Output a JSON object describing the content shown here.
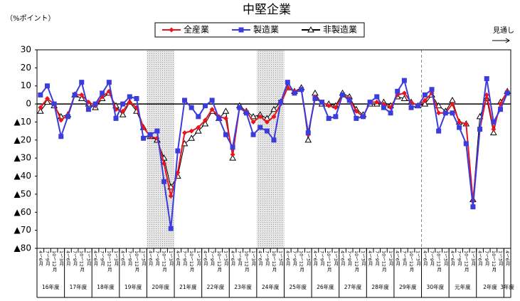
{
  "chart_data": {
    "type": "line",
    "title": "中堅企業",
    "y_unit": "（%ポイント）",
    "annotation": "見通し",
    "categories": [
      "4～6月",
      "7～9月",
      "10～12月",
      "1～3月",
      "4～6月",
      "7～9月",
      "10～12月",
      "1～3月",
      "4～6月",
      "7～9月",
      "10～12月",
      "1～3月",
      "4～6月",
      "7～9月",
      "10～12月",
      "1～3月",
      "4～6月",
      "7～9月",
      "10～12月",
      "1～3月",
      "4～6月",
      "7～9月",
      "10～12月",
      "1～3月",
      "4～6月",
      "7～9月",
      "10～12月",
      "1～3月",
      "4～6月",
      "7～9月",
      "10～12月",
      "1～3月",
      "4～6月",
      "7～9月",
      "10～12月",
      "1～3月",
      "4～6月",
      "7～9月",
      "10～12月",
      "1～3月",
      "4～6月",
      "7～9月",
      "10～12月",
      "1～3月",
      "4～6月",
      "7～9月",
      "10～12月",
      "1～3月",
      "4～6月",
      "7～9月",
      "10～12月",
      "1～3月",
      "4～6月",
      "7～9月",
      "10～12月",
      "1～3月",
      "4～6月",
      "7～9月",
      "10～12月",
      "1～3月",
      "4～6月",
      "7～9月",
      "10～12月",
      "1～3月",
      "4～6月",
      "7～9月",
      "10～12月",
      "1～3月",
      "4～6月"
    ],
    "groups": [
      "16年度",
      "17年度",
      "18年度",
      "19年度",
      "20年度",
      "21年度",
      "22年度",
      "23年度",
      "24年度",
      "25年度",
      "26年度",
      "27年度",
      "28年度",
      "29年度",
      "30年度",
      "元年度",
      "2年度",
      "3年度"
    ],
    "series": [
      {
        "name": "全産業",
        "color": "#e8141e",
        "marker": "diamond",
        "values": [
          -2,
          3,
          0,
          -9,
          -6,
          5,
          5,
          1,
          -1,
          4,
          7,
          -3,
          -4,
          1,
          -2,
          -13,
          -18,
          -19,
          -33,
          -51,
          -38,
          -16,
          -15,
          -13,
          -9,
          -3,
          -7,
          -8,
          -28,
          -2,
          -4,
          -10,
          -7,
          -10,
          -7,
          0,
          9,
          7,
          8,
          -17,
          4,
          1,
          -1,
          -2,
          5,
          3,
          -4,
          -7,
          1,
          1,
          0,
          -2,
          5,
          6,
          1,
          -1,
          2,
          6,
          -5,
          -5,
          0,
          -10,
          -11,
          -54,
          -14,
          5,
          -14,
          0,
          7
        ]
      },
      {
        "name": "製造業",
        "color": "#3c3cdc",
        "marker": "square",
        "values": [
          5,
          10,
          0,
          -18,
          -7,
          5,
          12,
          -3,
          0,
          6,
          12,
          -8,
          0,
          4,
          3,
          -19,
          -17,
          -15,
          -43,
          -69,
          -26,
          2,
          -2,
          -7,
          -1,
          2,
          -8,
          -17,
          -24,
          -2,
          -5,
          -17,
          -13,
          -15,
          -20,
          1,
          12,
          6,
          8,
          -16,
          3,
          1,
          -8,
          -7,
          5,
          2,
          -8,
          -7,
          1,
          4,
          -2,
          -5,
          7,
          13,
          -2,
          -1,
          5,
          8,
          -15,
          -5,
          -5,
          -13,
          -22,
          -57,
          -14,
          14,
          -10,
          -3,
          6
        ]
      },
      {
        "name": "非製造業",
        "color": "#000000",
        "marker": "triangle",
        "values": [
          -4,
          1,
          -1,
          -7,
          -6,
          5,
          3,
          0,
          -2,
          3,
          6,
          -1,
          -6,
          1,
          -4,
          -13,
          -18,
          -20,
          -30,
          -46,
          -40,
          -22,
          -19,
          -15,
          -11,
          -4,
          -8,
          -4,
          -30,
          -1,
          -4,
          -7,
          -6,
          -8,
          -3,
          1,
          9,
          7,
          9,
          -20,
          6,
          0,
          0,
          -1,
          6,
          4,
          -3,
          -6,
          0,
          0,
          1,
          -1,
          4,
          3,
          1,
          -1,
          0,
          5,
          -1,
          -4,
          2,
          -10,
          -11,
          -53,
          -7,
          3,
          -16,
          1,
          7
        ]
      }
    ],
    "ylim": [
      -80,
      30
    ],
    "yticks": [
      {
        "value": -80,
        "label": "▲80"
      },
      {
        "value": -70,
        "label": "▲70"
      },
      {
        "value": -60,
        "label": "▲60"
      },
      {
        "value": -50,
        "label": "▲50"
      },
      {
        "value": -40,
        "label": "▲40"
      },
      {
        "value": -30,
        "label": "▲30"
      },
      {
        "value": -20,
        "label": "▲20"
      },
      {
        "value": -10,
        "label": "▲10"
      },
      0,
      10,
      20,
      30
    ],
    "grid": false
  }
}
